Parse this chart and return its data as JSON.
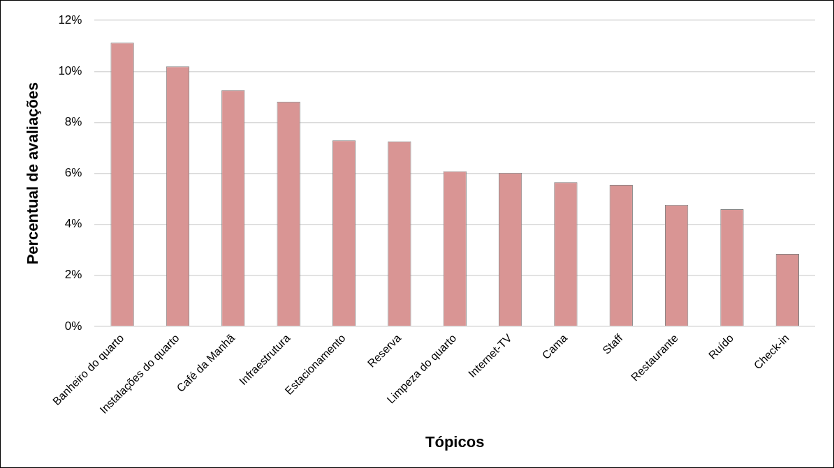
{
  "chart_data": {
    "type": "bar",
    "xlabel": "Tópicos",
    "ylabel": "Percentual de avaliações",
    "categories": [
      "Banheiro do quarto",
      "Instalações do quarto",
      "Café da Manhã",
      "Infraestrutura",
      "Estacionamento",
      "Reserva",
      "Limpeza do quarto",
      "Internet-TV",
      "Cama",
      "Staff",
      "Restaurante",
      "Ruído",
      "Check-in"
    ],
    "values": [
      11.12,
      10.19,
      9.26,
      8.81,
      7.29,
      7.25,
      6.08,
      6.02,
      5.65,
      5.55,
      4.76,
      4.59,
      2.84
    ],
    "color": "#d99594",
    "ylim": [
      0,
      12
    ],
    "yticks": [
      {
        "value": 0,
        "label": "0%"
      },
      {
        "value": 2,
        "label": "2%"
      },
      {
        "value": 4,
        "label": "4%"
      },
      {
        "value": 6,
        "label": "6%"
      },
      {
        "value": 8,
        "label": "8%"
      },
      {
        "value": 10,
        "label": "10%"
      },
      {
        "value": 12,
        "label": "12%"
      }
    ],
    "grid": "y",
    "legend": false
  }
}
